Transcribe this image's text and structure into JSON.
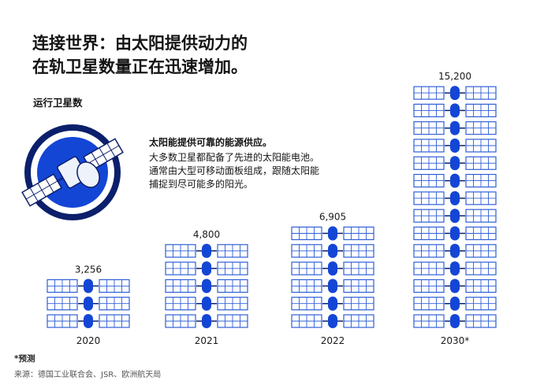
{
  "title_lines": [
    "连接世界：由太阳提供动力的",
    "在轨卫星数量正在迅速增加。"
  ],
  "ylabel": "运行卫星数",
  "note": {
    "heading": "太阳能提供可靠的能源供应。",
    "lines": [
      "大多数卫星都配备了先进的太阳能电池。",
      "通常由大型可移动面板组成，跟随太阳能",
      "捕捉到尽可能多的阳光。"
    ]
  },
  "footnote": "*预测",
  "source": "来源：德国工业联合会、JSR、欧洲航天局",
  "colors": {
    "accent": "#1446d6",
    "navy": "#0b1f6b",
    "panel": "#2f5fd6"
  },
  "icons": [
    "satellite-icon",
    "solar-satellite-icon"
  ],
  "chart_data": {
    "type": "bar",
    "categories": [
      "2020",
      "2021",
      "2022",
      "2030*"
    ],
    "values": [
      3256,
      4800,
      6905,
      15200
    ],
    "value_labels": [
      "3,256",
      "4,800",
      "6,905",
      "15,200"
    ],
    "icon_counts": [
      3,
      5,
      6,
      14
    ],
    "ylabel": "运行卫星数"
  }
}
